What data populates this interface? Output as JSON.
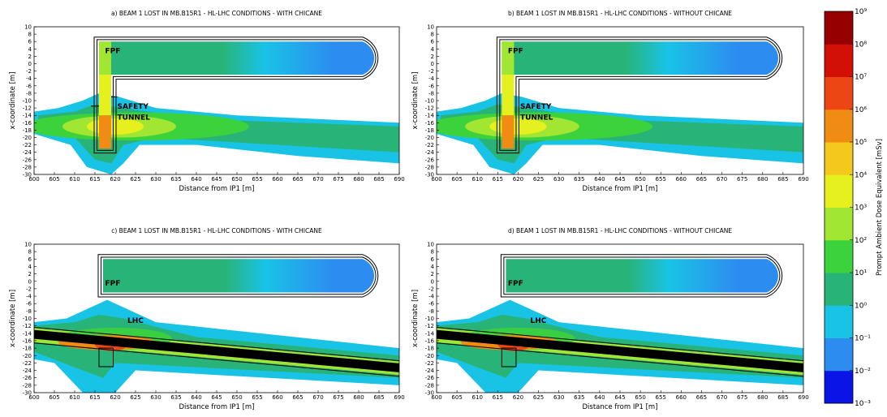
{
  "chart_data": [
    {
      "type": "heatmap",
      "title": "a) BEAM 1 LOST IN MB.B15R1 - HL-LHC CONDITIONS - WITH CHICANE",
      "x_label": "Distance from IP1 [m]",
      "y_label": "x-coordinate [m]",
      "xlim": [
        600,
        690
      ],
      "xticks": [
        600,
        605,
        610,
        615,
        620,
        625,
        630,
        635,
        640,
        645,
        650,
        655,
        660,
        665,
        670,
        675,
        680,
        685,
        690
      ],
      "ylim": [
        -30,
        10
      ],
      "yticks": [
        -30,
        -28,
        -26,
        -24,
        -22,
        -20,
        -18,
        -16,
        -14,
        -12,
        -10,
        -8,
        -6,
        -4,
        -2,
        0,
        2,
        4,
        6,
        8,
        10
      ],
      "annotations": [
        "FPF",
        "SAFETY",
        "TUNNEL"
      ]
    },
    {
      "type": "heatmap",
      "title": "b) BEAM 1 LOST IN MB.B15R1 - HL-LHC CONDITIONS - WITHOUT CHICANE",
      "x_label": "Distance from IP1 [m]",
      "y_label": "x-coordinate [m]",
      "xlim": [
        600,
        690
      ],
      "xticks": [
        600,
        605,
        610,
        615,
        620,
        625,
        630,
        635,
        640,
        645,
        650,
        655,
        660,
        665,
        670,
        675,
        680,
        685,
        690
      ],
      "ylim": [
        -30,
        10
      ],
      "yticks": [
        -30,
        -28,
        -26,
        -24,
        -22,
        -20,
        -18,
        -16,
        -14,
        -12,
        -10,
        -8,
        -6,
        -4,
        -2,
        0,
        2,
        4,
        6,
        8,
        10
      ],
      "annotations": [
        "FPF",
        "SAFETY",
        "TUNNEL"
      ]
    },
    {
      "type": "heatmap",
      "title": "c) BEAM 1 LOST IN MB.B15R1 - HL-LHC CONDITIONS - WITH CHICANE",
      "x_label": "Distance from IP1 [m]",
      "y_label": "x-coordinate [m]",
      "xlim": [
        600,
        690
      ],
      "xticks": [
        600,
        605,
        610,
        615,
        620,
        625,
        630,
        635,
        640,
        645,
        650,
        655,
        660,
        665,
        670,
        675,
        680,
        685,
        690
      ],
      "ylim": [
        -30,
        10
      ],
      "yticks": [
        -30,
        -28,
        -26,
        -24,
        -22,
        -20,
        -18,
        -16,
        -14,
        -12,
        -10,
        -8,
        -6,
        -4,
        -2,
        0,
        2,
        4,
        6,
        8,
        10
      ],
      "annotations": [
        "FPF",
        "LHC"
      ]
    },
    {
      "type": "heatmap",
      "title": "d) BEAM 1 LOST IN MB.B15R1 - HL-LHC CONDITIONS - WITHOUT CHICANE",
      "x_label": "Distance from IP1 [m]",
      "y_label": "x-coordinate [m]",
      "xlim": [
        600,
        690
      ],
      "xticks": [
        600,
        605,
        610,
        615,
        620,
        625,
        630,
        635,
        640,
        645,
        650,
        655,
        660,
        665,
        670,
        675,
        680,
        685,
        690
      ],
      "ylim": [
        -30,
        10
      ],
      "yticks": [
        -30,
        -28,
        -26,
        -24,
        -22,
        -20,
        -18,
        -16,
        -14,
        -12,
        -10,
        -8,
        -6,
        -4,
        -2,
        0,
        2,
        4,
        6,
        8,
        10
      ],
      "annotations": [
        "FPF",
        "LHC"
      ]
    },
    {
      "type": "colorbar",
      "label": "Prompt Ambient Dose Equivalent [mSv]",
      "log_scale": true,
      "ylim": [
        0.001,
        1000000000
      ],
      "yticks": [
        {
          "value": 0.001,
          "label": "10⁻³"
        },
        {
          "value": 0.01,
          "label": "10⁻²"
        },
        {
          "value": 0.1,
          "label": "10⁻¹"
        },
        {
          "value": 1,
          "label": "10⁰"
        },
        {
          "value": 10,
          "label": "10¹"
        },
        {
          "value": 100,
          "label": "10²"
        },
        {
          "value": 1000,
          "label": "10³"
        },
        {
          "value": 10000,
          "label": "10⁴"
        },
        {
          "value": 100000,
          "label": "10⁵"
        },
        {
          "value": 1000000,
          "label": "10⁶"
        },
        {
          "value": 10000000,
          "label": "10⁷"
        },
        {
          "value": 100000000,
          "label": "10⁸"
        },
        {
          "value": 1000000000,
          "label": "10⁹"
        }
      ],
      "colors": [
        "#0a14e6",
        "#2d8cf0",
        "#19c3e6",
        "#28b478",
        "#3cd23c",
        "#a0e632",
        "#e6f01e",
        "#f5c81e",
        "#f08c14",
        "#eb4614",
        "#d21008",
        "#960000"
      ]
    }
  ]
}
